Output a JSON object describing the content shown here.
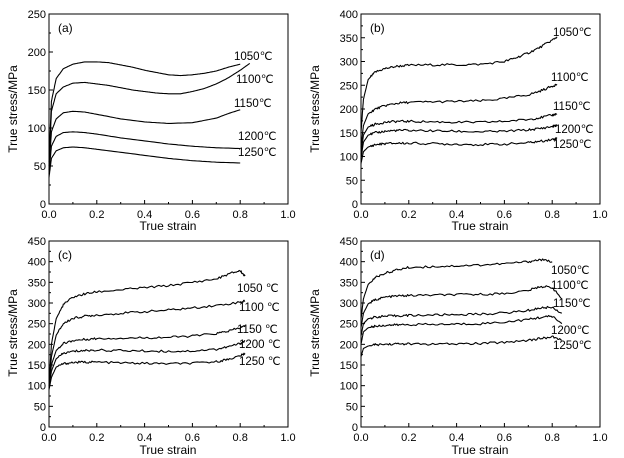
{
  "chart_data": [
    {
      "type": "line",
      "panel_label": "(a)",
      "xlabel": "True strain",
      "ylabel": "True stress/MPa",
      "xlim": [
        0,
        1.0
      ],
      "ylim": [
        0,
        250
      ],
      "xticks": [
        0.0,
        0.2,
        0.4,
        0.6,
        0.8,
        1.0
      ],
      "xtick_labels": [
        "0.0",
        "0.2",
        "0.4",
        "0.6",
        "0.8",
        "1.0"
      ],
      "yticks": [
        0,
        50,
        100,
        150,
        200,
        250
      ],
      "ytick_labels": [
        "0",
        "50",
        "100",
        "150",
        "200",
        "250"
      ],
      "series": [
        {
          "name": "1050℃",
          "x": [
            0,
            0.01,
            0.03,
            0.06,
            0.1,
            0.15,
            0.2,
            0.25,
            0.3,
            0.35,
            0.4,
            0.45,
            0.5,
            0.55,
            0.6,
            0.65,
            0.7,
            0.75,
            0.8
          ],
          "y": [
            55,
            135,
            165,
            178,
            184,
            187,
            187,
            186,
            183,
            180,
            176,
            173,
            170,
            169,
            170,
            172,
            175,
            180,
            184
          ]
        },
        {
          "name": "1100℃",
          "x": [
            0,
            0.01,
            0.03,
            0.06,
            0.1,
            0.15,
            0.2,
            0.25,
            0.3,
            0.35,
            0.4,
            0.45,
            0.5,
            0.55,
            0.6,
            0.65,
            0.7,
            0.75,
            0.8,
            0.84
          ],
          "y": [
            50,
            122,
            145,
            154,
            159,
            160,
            158,
            156,
            153,
            150,
            148,
            146,
            145,
            145,
            148,
            152,
            158,
            166,
            176,
            185
          ]
        },
        {
          "name": "1150℃",
          "x": [
            0,
            0.01,
            0.03,
            0.06,
            0.1,
            0.15,
            0.2,
            0.3,
            0.4,
            0.5,
            0.6,
            0.7,
            0.75,
            0.8
          ],
          "y": [
            45,
            95,
            112,
            120,
            122,
            121,
            118,
            112,
            108,
            106,
            107,
            113,
            119,
            124
          ]
        },
        {
          "name": "1200℃",
          "x": [
            0,
            0.01,
            0.03,
            0.06,
            0.1,
            0.15,
            0.2,
            0.3,
            0.4,
            0.5,
            0.6,
            0.7,
            0.8
          ],
          "y": [
            40,
            76,
            89,
            94,
            95,
            94,
            92,
            87,
            83,
            79,
            76,
            74,
            73
          ]
        },
        {
          "name": "1250℃",
          "x": [
            0,
            0.01,
            0.03,
            0.06,
            0.1,
            0.15,
            0.2,
            0.3,
            0.4,
            0.5,
            0.6,
            0.7,
            0.8
          ],
          "y": [
            35,
            60,
            70,
            74,
            75,
            74,
            72,
            68,
            64,
            60,
            57,
            55,
            54
          ]
        }
      ],
      "legend": [
        "1050℃",
        "1100℃",
        "1150℃",
        "1200℃",
        "1250℃"
      ]
    },
    {
      "type": "line",
      "panel_label": "(b)",
      "xlabel": "True strain",
      "ylabel": "True stress/MPa",
      "xlim": [
        0,
        1.0
      ],
      "ylim": [
        0,
        400
      ],
      "xticks": [
        0.0,
        0.2,
        0.4,
        0.6,
        0.8,
        1.0
      ],
      "xtick_labels": [
        "0.0",
        "0.2",
        "0.4",
        "0.6",
        "0.8",
        "1.0"
      ],
      "yticks": [
        0,
        50,
        100,
        150,
        200,
        250,
        300,
        350,
        400
      ],
      "ytick_labels": [
        "0",
        "50",
        "100",
        "150",
        "200",
        "250",
        "300",
        "350",
        "400"
      ],
      "series": [
        {
          "name": "1050℃",
          "x": [
            0,
            0.01,
            0.03,
            0.06,
            0.1,
            0.15,
            0.2,
            0.3,
            0.4,
            0.5,
            0.6,
            0.65,
            0.7,
            0.75,
            0.8,
            0.82
          ],
          "y": [
            150,
            220,
            262,
            278,
            285,
            290,
            292,
            293,
            293,
            294,
            300,
            308,
            318,
            330,
            345,
            352
          ]
        },
        {
          "name": "1100℃",
          "x": [
            0,
            0.01,
            0.03,
            0.06,
            0.1,
            0.15,
            0.2,
            0.3,
            0.4,
            0.5,
            0.6,
            0.7,
            0.75,
            0.8,
            0.82
          ],
          "y": [
            120,
            165,
            190,
            200,
            207,
            212,
            214,
            215,
            216,
            217,
            222,
            230,
            238,
            248,
            252
          ]
        },
        {
          "name": "1150℃",
          "x": [
            0,
            0.01,
            0.03,
            0.06,
            0.1,
            0.15,
            0.2,
            0.3,
            0.4,
            0.5,
            0.6,
            0.7,
            0.75,
            0.8,
            0.82
          ],
          "y": [
            105,
            145,
            162,
            168,
            172,
            174,
            174,
            173,
            172,
            172,
            174,
            178,
            182,
            187,
            190
          ]
        },
        {
          "name": "1200℃",
          "x": [
            0,
            0.01,
            0.03,
            0.06,
            0.1,
            0.15,
            0.2,
            0.3,
            0.4,
            0.5,
            0.6,
            0.7,
            0.75,
            0.8,
            0.82
          ],
          "y": [
            95,
            130,
            145,
            150,
            153,
            155,
            155,
            154,
            153,
            152,
            153,
            156,
            159,
            163,
            166
          ]
        },
        {
          "name": "1250℃",
          "x": [
            0,
            0.01,
            0.03,
            0.06,
            0.1,
            0.15,
            0.2,
            0.3,
            0.4,
            0.5,
            0.6,
            0.7,
            0.75,
            0.8,
            0.82
          ],
          "y": [
            85,
            110,
            120,
            125,
            127,
            128,
            128,
            127,
            126,
            125,
            126,
            129,
            132,
            136,
            138
          ]
        }
      ],
      "legend": [
        "1050℃",
        "1100℃",
        "1150℃",
        "1200℃",
        "1250℃"
      ]
    },
    {
      "type": "line",
      "panel_label": "(c)",
      "xlabel": "True strain",
      "ylabel": "True stress/MPa",
      "xlim": [
        0,
        1.0
      ],
      "ylim": [
        0,
        450
      ],
      "xticks": [
        0.0,
        0.2,
        0.4,
        0.6,
        0.8,
        1.0
      ],
      "xtick_labels": [
        "0.0",
        "0.2",
        "0.4",
        "0.6",
        "0.8",
        "1.0"
      ],
      "yticks": [
        0,
        50,
        100,
        150,
        200,
        250,
        300,
        350,
        400,
        450
      ],
      "ytick_labels": [
        "0",
        "50",
        "100",
        "150",
        "200",
        "250",
        "300",
        "350",
        "400",
        "450"
      ],
      "series": [
        {
          "name": "1050 ℃",
          "x": [
            0,
            0.01,
            0.03,
            0.06,
            0.1,
            0.15,
            0.2,
            0.3,
            0.4,
            0.5,
            0.6,
            0.7,
            0.76,
            0.8,
            0.82
          ],
          "y": [
            100,
            200,
            262,
            296,
            314,
            322,
            327,
            332,
            337,
            342,
            350,
            358,
            372,
            378,
            365
          ]
        },
        {
          "name": "1100 ℃",
          "x": [
            0,
            0.01,
            0.03,
            0.06,
            0.1,
            0.15,
            0.2,
            0.3,
            0.4,
            0.5,
            0.6,
            0.7,
            0.8,
            0.82
          ],
          "y": [
            100,
            170,
            222,
            250,
            263,
            268,
            271,
            275,
            279,
            283,
            288,
            294,
            302,
            305
          ]
        },
        {
          "name": "1150 ℃",
          "x": [
            0,
            0.01,
            0.03,
            0.06,
            0.1,
            0.15,
            0.2,
            0.3,
            0.4,
            0.5,
            0.6,
            0.7,
            0.75,
            0.8,
            0.82
          ],
          "y": [
            100,
            150,
            185,
            202,
            209,
            212,
            214,
            215,
            216,
            217,
            220,
            226,
            232,
            240,
            245
          ]
        },
        {
          "name": "1200 ℃",
          "x": [
            0,
            0.01,
            0.03,
            0.06,
            0.1,
            0.15,
            0.2,
            0.3,
            0.4,
            0.5,
            0.6,
            0.7,
            0.75,
            0.8,
            0.82
          ],
          "y": [
            95,
            135,
            165,
            178,
            183,
            185,
            186,
            185,
            184,
            183,
            184,
            188,
            194,
            202,
            208
          ]
        },
        {
          "name": "1250 ℃",
          "x": [
            0,
            0.01,
            0.03,
            0.06,
            0.1,
            0.15,
            0.2,
            0.3,
            0.4,
            0.5,
            0.6,
            0.7,
            0.75,
            0.8,
            0.82
          ],
          "y": [
            90,
            120,
            145,
            153,
            156,
            157,
            157,
            155,
            154,
            153,
            154,
            158,
            164,
            172,
            178
          ]
        }
      ],
      "legend": [
        "1050 ℃",
        "1100 ℃",
        "1150 ℃",
        "1200 ℃",
        "1250 ℃"
      ]
    },
    {
      "type": "line",
      "panel_label": "(d)",
      "xlabel": "True strain",
      "ylabel": "True stress/MPa",
      "xlim": [
        0,
        1.0
      ],
      "ylim": [
        0,
        450
      ],
      "xticks": [
        0.0,
        0.2,
        0.4,
        0.6,
        0.8,
        1.0
      ],
      "xtick_labels": [
        "0.0",
        "0.2",
        "0.4",
        "0.6",
        "0.8",
        "1.0"
      ],
      "yticks": [
        0,
        50,
        100,
        150,
        200,
        250,
        300,
        350,
        400,
        450
      ],
      "ytick_labels": [
        "0",
        "50",
        "100",
        "150",
        "200",
        "250",
        "300",
        "350",
        "400",
        "450"
      ],
      "series": [
        {
          "name": "1050℃",
          "x": [
            0,
            0.01,
            0.03,
            0.06,
            0.1,
            0.15,
            0.2,
            0.3,
            0.4,
            0.5,
            0.6,
            0.7,
            0.75,
            0.8
          ],
          "y": [
            260,
            310,
            345,
            362,
            372,
            380,
            386,
            388,
            390,
            392,
            395,
            400,
            405,
            400
          ]
        },
        {
          "name": "1100℃",
          "x": [
            0,
            0.01,
            0.03,
            0.06,
            0.1,
            0.15,
            0.2,
            0.3,
            0.4,
            0.5,
            0.6,
            0.7,
            0.75,
            0.8,
            0.84
          ],
          "y": [
            240,
            275,
            298,
            308,
            314,
            317,
            318,
            319,
            320,
            321,
            323,
            330,
            340,
            338,
            310
          ]
        },
        {
          "name": "1150℃",
          "x": [
            0,
            0.01,
            0.03,
            0.06,
            0.1,
            0.15,
            0.2,
            0.3,
            0.4,
            0.5,
            0.6,
            0.7,
            0.75,
            0.8,
            0.84
          ],
          "y": [
            220,
            250,
            262,
            266,
            268,
            269,
            270,
            271,
            272,
            273,
            276,
            282,
            288,
            290,
            275
          ]
        },
        {
          "name": "1200℃",
          "x": [
            0,
            0.01,
            0.03,
            0.06,
            0.1,
            0.15,
            0.2,
            0.3,
            0.4,
            0.5,
            0.6,
            0.7,
            0.75,
            0.8,
            0.84
          ],
          "y": [
            200,
            230,
            240,
            244,
            246,
            247,
            248,
            248,
            249,
            250,
            254,
            260,
            265,
            268,
            250
          ]
        },
        {
          "name": "1250℃",
          "x": [
            0,
            0.01,
            0.03,
            0.06,
            0.1,
            0.15,
            0.2,
            0.3,
            0.4,
            0.5,
            0.6,
            0.7,
            0.75,
            0.8,
            0.84
          ],
          "y": [
            170,
            190,
            196,
            199,
            200,
            201,
            201,
            200,
            201,
            202,
            205,
            210,
            214,
            218,
            210
          ]
        }
      ],
      "legend": [
        "1050℃",
        "1100℃",
        "1150℃",
        "1200℃",
        "1250℃"
      ]
    }
  ]
}
